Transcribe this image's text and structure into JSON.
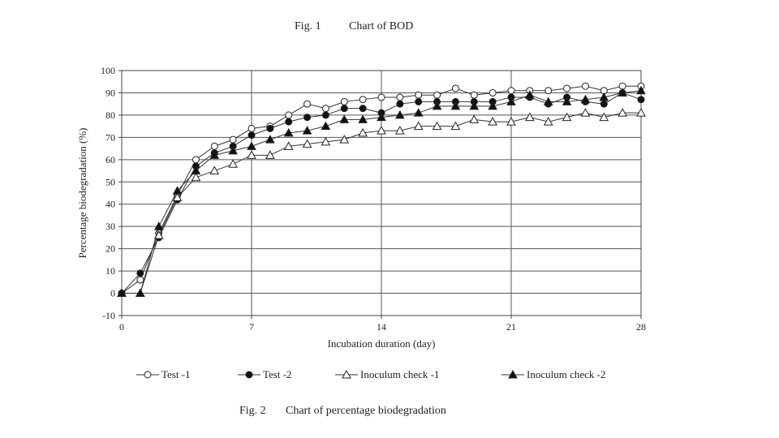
{
  "caption_top": {
    "number": "Fig. 1",
    "text": "Chart of BOD"
  },
  "caption_bottom": {
    "number": "Fig. 2",
    "text": "Chart of percentage biodegradation"
  },
  "chart_data": {
    "type": "line",
    "title": "",
    "xlabel": "Incubation duration (day)",
    "ylabel": "Percentage biodegradation (%)",
    "xlim": [
      0,
      28
    ],
    "ylim": [
      -10,
      100
    ],
    "x_ticks": [
      0,
      7,
      14,
      21,
      28
    ],
    "y_ticks": [
      -10,
      0,
      10,
      20,
      30,
      40,
      50,
      60,
      70,
      80,
      90,
      100
    ],
    "grid": "major x and y",
    "legend_position": "bottom",
    "series": [
      {
        "name": "Test -1",
        "marker": "open-circle",
        "x": [
          0,
          1,
          2,
          3,
          4,
          5,
          6,
          7,
          8,
          9,
          10,
          11,
          12,
          13,
          14,
          15,
          16,
          17,
          18,
          19,
          20,
          21,
          22,
          23,
          24,
          25,
          26,
          27,
          28
        ],
        "values": [
          0,
          6,
          27,
          44,
          60,
          66,
          69,
          74,
          75,
          80,
          85,
          83,
          86,
          87,
          88,
          88,
          89,
          89,
          92,
          89,
          90,
          91,
          91,
          91,
          92,
          93,
          91,
          93,
          93
        ]
      },
      {
        "name": "Test -2",
        "marker": "filled-circle",
        "x": [
          0,
          1,
          2,
          3,
          4,
          5,
          6,
          7,
          8,
          9,
          10,
          11,
          12,
          13,
          14,
          15,
          16,
          17,
          18,
          19,
          20,
          21,
          22,
          23,
          24,
          25,
          26,
          27,
          28
        ],
        "values": [
          0,
          9,
          25,
          42,
          57,
          63,
          66,
          71,
          74,
          77,
          79,
          80,
          83,
          83,
          81,
          85,
          86,
          86,
          86,
          86,
          86,
          88,
          88,
          85,
          88,
          86,
          85,
          90,
          87
        ]
      },
      {
        "name": "Inoculum check -1",
        "marker": "open-triangle",
        "x": [
          0,
          1,
          2,
          3,
          4,
          5,
          6,
          7,
          8,
          9,
          10,
          11,
          12,
          13,
          14,
          15,
          16,
          17,
          18,
          19,
          20,
          21,
          22,
          23,
          24,
          25,
          26,
          27,
          28
        ],
        "values": [
          0,
          0,
          26,
          43,
          52,
          55,
          58,
          62,
          62,
          66,
          67,
          68,
          69,
          72,
          73,
          73,
          75,
          75,
          75,
          78,
          77,
          77,
          79,
          77,
          79,
          81,
          79,
          81,
          81
        ]
      },
      {
        "name": "Inoculum check -2",
        "marker": "filled-triangle",
        "x": [
          0,
          1,
          2,
          3,
          4,
          5,
          6,
          7,
          8,
          9,
          10,
          11,
          12,
          13,
          14,
          15,
          16,
          17,
          18,
          19,
          20,
          21,
          22,
          23,
          24,
          25,
          26,
          27,
          28
        ],
        "values": [
          0,
          0,
          30,
          46,
          55,
          62,
          64,
          66,
          69,
          72,
          73,
          75,
          78,
          78,
          79,
          80,
          81,
          84,
          84,
          84,
          84,
          86,
          89,
          86,
          86,
          87,
          88,
          90,
          91
        ]
      }
    ]
  }
}
